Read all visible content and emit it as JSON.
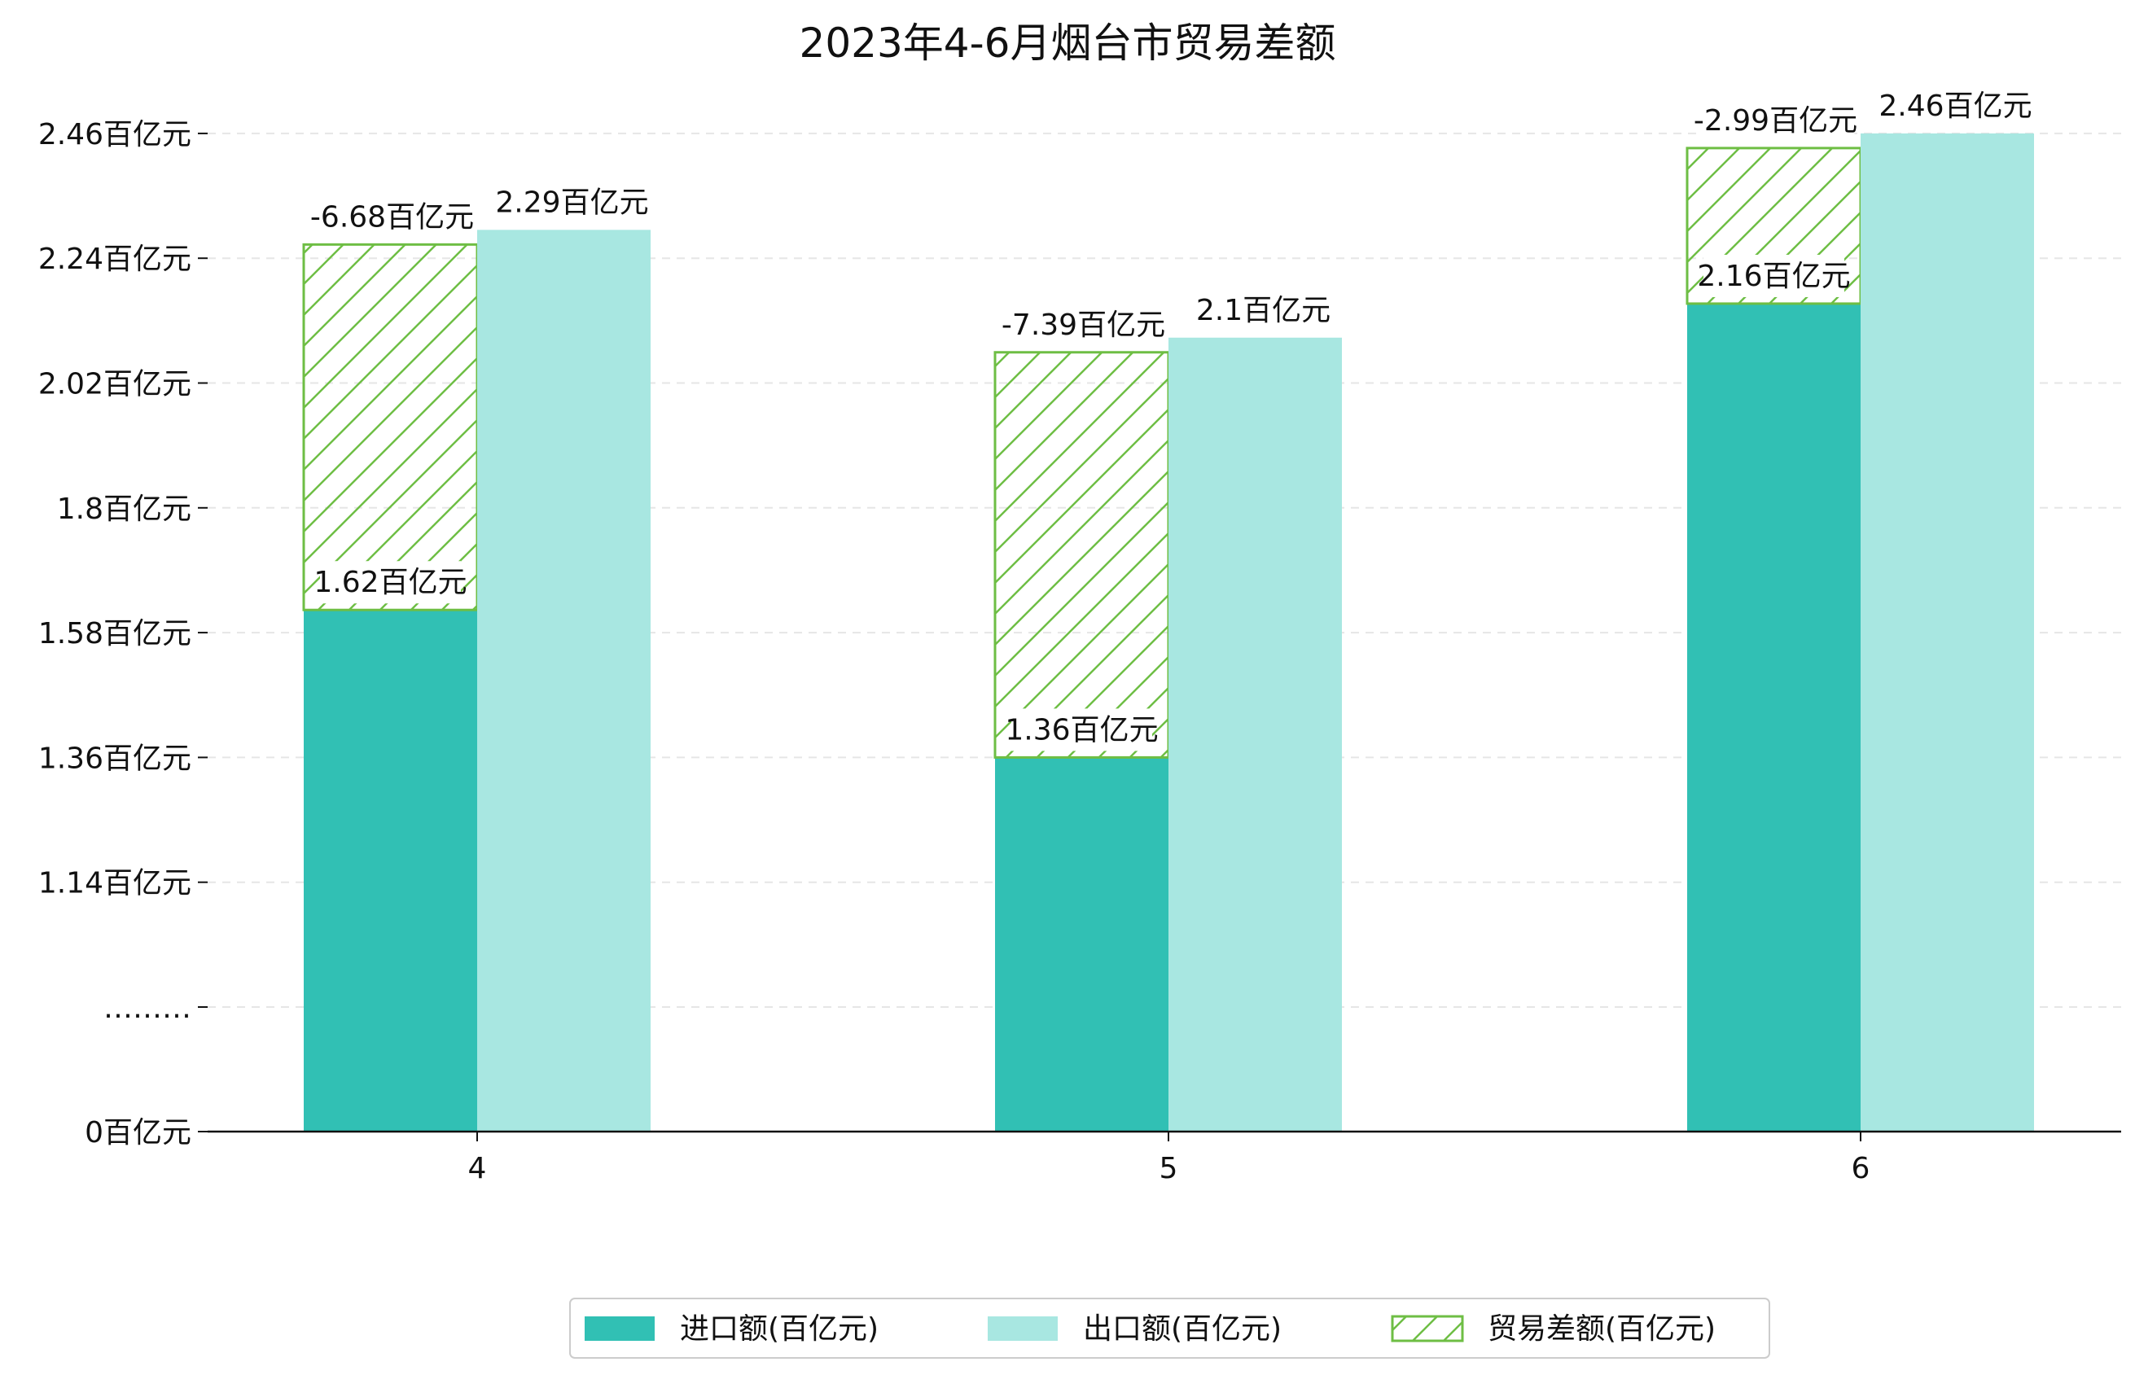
{
  "chart_data": {
    "type": "bar",
    "title": "2023年4-6月烟台市贸易差额",
    "xlabel": "",
    "ylabel": "",
    "categories": [
      "4",
      "5",
      "6"
    ],
    "series": [
      {
        "name": "进口额(百亿元)",
        "values": [
          1.62,
          1.36,
          2.16
        ],
        "labels": [
          "1.62百亿元",
          "1.36百亿元",
          "2.16百亿元"
        ],
        "color": "#31c0b4"
      },
      {
        "name": "出口额(百亿元)",
        "values": [
          2.29,
          2.1,
          2.46
        ],
        "labels": [
          "2.29百亿元",
          "2.1百亿元",
          "2.46百亿元"
        ],
        "color": "#a8e7e1"
      },
      {
        "name": "贸易差额(百亿元)",
        "values": [
          -6.68,
          -7.39,
          -2.99
        ],
        "labels": [
          "-6.68百亿元",
          "-7.39百亿元",
          "-2.99百亿元"
        ],
        "color": "#6ebe44",
        "hatch": "diagonal",
        "stacked_on": "进口额(百亿元)"
      }
    ],
    "yticks": [
      {
        "value": 0,
        "label": "0百亿元"
      },
      {
        "value": 0.92,
        "label": "………"
      },
      {
        "value": 1.14,
        "label": "1.14百亿元"
      },
      {
        "value": 1.36,
        "label": "1.36百亿元"
      },
      {
        "value": 1.58,
        "label": "1.58百亿元"
      },
      {
        "value": 1.8,
        "label": "1.8百亿元"
      },
      {
        "value": 2.02,
        "label": "2.02百亿元"
      },
      {
        "value": 2.24,
        "label": "2.24百亿元"
      },
      {
        "value": 2.46,
        "label": "2.46百亿元"
      }
    ],
    "ylim": [
      0,
      2.46
    ],
    "grid": true,
    "legend_position": "bottom-center"
  }
}
